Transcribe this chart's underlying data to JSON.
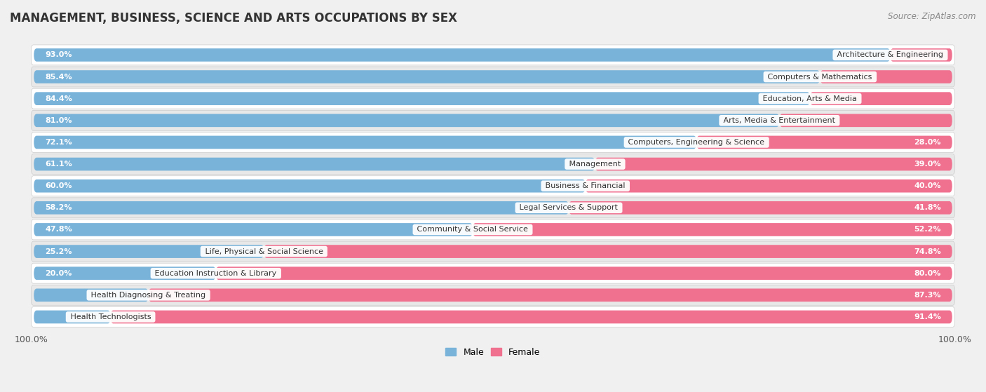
{
  "title": "MANAGEMENT, BUSINESS, SCIENCE AND ARTS OCCUPATIONS BY SEX",
  "source": "Source: ZipAtlas.com",
  "categories": [
    "Architecture & Engineering",
    "Computers & Mathematics",
    "Education, Arts & Media",
    "Arts, Media & Entertainment",
    "Computers, Engineering & Science",
    "Management",
    "Business & Financial",
    "Legal Services & Support",
    "Community & Social Service",
    "Life, Physical & Social Science",
    "Education Instruction & Library",
    "Health Diagnosing & Treating",
    "Health Technologists"
  ],
  "male_pct": [
    93.0,
    85.4,
    84.4,
    81.0,
    72.1,
    61.1,
    60.0,
    58.2,
    47.8,
    25.2,
    20.0,
    12.7,
    8.6
  ],
  "female_pct": [
    7.0,
    14.6,
    15.7,
    19.0,
    28.0,
    39.0,
    40.0,
    41.8,
    52.2,
    74.8,
    80.0,
    87.3,
    91.4
  ],
  "male_color": "#7ab3d9",
  "female_color": "#f07090",
  "bg_color": "#f0f0f0",
  "row_color_odd": "#ffffff",
  "row_color_even": "#e8e8e8",
  "title_fontsize": 12,
  "source_fontsize": 8.5,
  "label_fontsize": 8.0,
  "bar_label_fontsize": 8.0,
  "legend_fontsize": 9
}
